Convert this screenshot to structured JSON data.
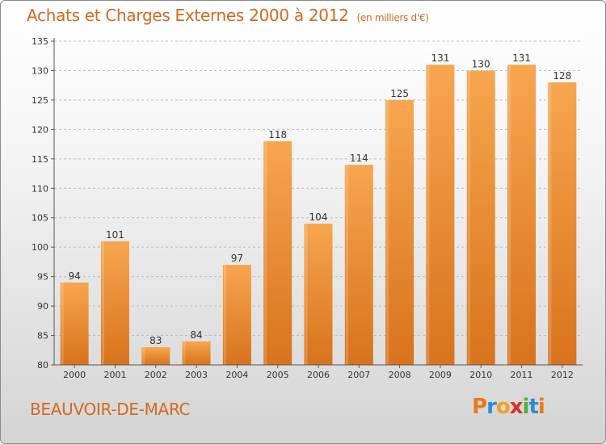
{
  "title": "Achats et Charges Externes 2000 à 2012",
  "subtitle": "(en milliers d'€)",
  "place": "BEAUVOIR-DE-MARC",
  "brand": "Proxiti",
  "colors": {
    "bar_light": "#f7a64f",
    "bar_dark": "#d8731c",
    "accent": "#d2691e",
    "grid": "#bbbbbb"
  },
  "chart_data": {
    "type": "bar",
    "title": "Achats et Charges Externes 2000 à 2012",
    "subtitle": "(en milliers d'€)",
    "xlabel": "",
    "ylabel": "",
    "categories": [
      "2000",
      "2001",
      "2002",
      "2003",
      "2004",
      "2005",
      "2006",
      "2007",
      "2008",
      "2009",
      "2010",
      "2011",
      "2012"
    ],
    "values": [
      94,
      101,
      83,
      84,
      97,
      118,
      104,
      114,
      125,
      131,
      130,
      131,
      128
    ],
    "ylim": [
      80,
      135
    ],
    "yticks": [
      80,
      85,
      90,
      95,
      100,
      105,
      110,
      115,
      120,
      125,
      130,
      135
    ],
    "grid": true,
    "data_labels": true
  }
}
